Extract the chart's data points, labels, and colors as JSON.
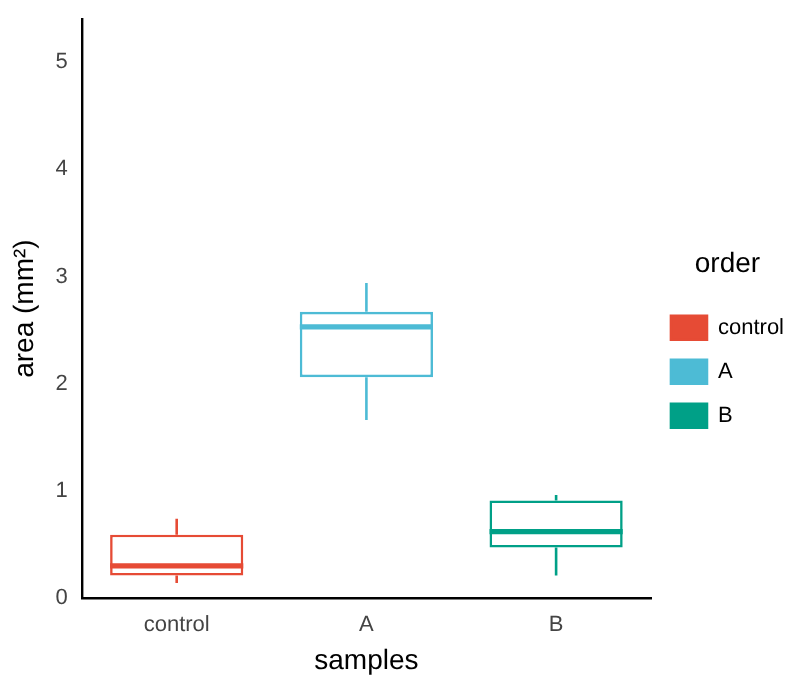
{
  "chart_data": {
    "type": "box",
    "xlabel": "samples",
    "ylabel": "area (mm²)",
    "legend_title": "order",
    "legend": "right",
    "grid": false,
    "categories": [
      "control",
      "A",
      "B"
    ],
    "series": [
      {
        "name": "control",
        "color": "#e64b35",
        "boxes": [
          {
            "low": 0.14,
            "q1": 0.21,
            "median": 0.3,
            "q3": 0.59,
            "high": 0.74
          },
          null,
          null
        ]
      },
      {
        "name": "A",
        "color": "#4dbbd5",
        "boxes": [
          null,
          {
            "low": 1.66,
            "q1": 2.06,
            "median": 2.53,
            "q3": 2.67,
            "high": 2.94
          },
          null
        ]
      },
      {
        "name": "B",
        "color": "#00a087",
        "boxes": [
          null,
          null,
          {
            "low": 0.21,
            "q1": 0.47,
            "median": 0.62,
            "q3": 0.91,
            "high": 0.96
          }
        ]
      }
    ],
    "ylim": [
      0,
      5.4
    ],
    "yticks": [
      0,
      1,
      2,
      3,
      4,
      5
    ]
  }
}
